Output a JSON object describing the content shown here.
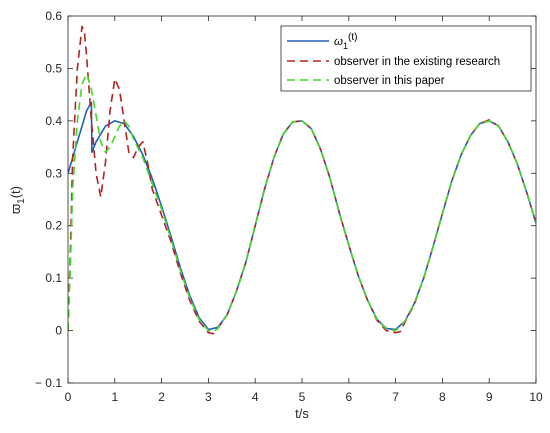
{
  "chart_data": {
    "type": "line",
    "xlabel": "t/s",
    "ylabel": "ϖ 1(t)",
    "ylabel_main": "ϖ",
    "ylabel_sub": "1",
    "ylabel_tail": "(t)",
    "xlim": [
      0,
      10
    ],
    "ylim": [
      -0.1,
      0.6
    ],
    "xticks": [
      0,
      1,
      2,
      3,
      4,
      5,
      6,
      7,
      8,
      9,
      10
    ],
    "xtick_labels": [
      "0",
      "1",
      "2",
      "3",
      "4",
      "5",
      "6",
      "7",
      "8",
      "9",
      "10"
    ],
    "yticks": [
      -0.1,
      0,
      0.1,
      0.2,
      0.3,
      0.4,
      0.5,
      0.6
    ],
    "ytick_labels": [
      "− 0.1",
      "0",
      "0.1",
      "0.2",
      "0.3",
      "0.4",
      "0.5",
      "0.6"
    ],
    "grid": false,
    "legend_position": "top-right",
    "series": [
      {
        "name": "ω 1(t)",
        "name_main": "ω",
        "name_sub": "1",
        "name_tail": "(t)",
        "color": "#1f5fb4",
        "style": "solid",
        "points": [
          [
            0,
            0.3
          ],
          [
            0.1,
            0.33
          ],
          [
            0.2,
            0.36
          ],
          [
            0.3,
            0.39
          ],
          [
            0.4,
            0.42
          ],
          [
            0.5,
            0.435
          ],
          [
            0.51,
            0.34
          ],
          [
            0.6,
            0.36
          ],
          [
            0.8,
            0.39
          ],
          [
            1.0,
            0.4
          ],
          [
            1.2,
            0.395
          ],
          [
            1.4,
            0.37
          ],
          [
            1.6,
            0.335
          ],
          [
            1.8,
            0.29
          ],
          [
            2.0,
            0.237
          ],
          [
            2.2,
            0.18
          ],
          [
            2.4,
            0.12
          ],
          [
            2.6,
            0.067
          ],
          [
            2.8,
            0.025
          ],
          [
            3.0,
            0.002
          ],
          [
            3.2,
            0.006
          ],
          [
            3.4,
            0.03
          ],
          [
            3.6,
            0.075
          ],
          [
            3.8,
            0.13
          ],
          [
            4.0,
            0.2
          ],
          [
            4.2,
            0.27
          ],
          [
            4.4,
            0.33
          ],
          [
            4.6,
            0.375
          ],
          [
            4.8,
            0.398
          ],
          [
            5.0,
            0.4
          ],
          [
            5.2,
            0.385
          ],
          [
            5.4,
            0.345
          ],
          [
            5.6,
            0.29
          ],
          [
            5.8,
            0.224
          ],
          [
            6.0,
            0.163
          ],
          [
            6.2,
            0.105
          ],
          [
            6.4,
            0.058
          ],
          [
            6.6,
            0.022
          ],
          [
            6.8,
            0.004
          ],
          [
            7.0,
            0.002
          ],
          [
            7.2,
            0.018
          ],
          [
            7.4,
            0.052
          ],
          [
            7.6,
            0.1
          ],
          [
            7.8,
            0.16
          ],
          [
            8.0,
            0.223
          ],
          [
            8.2,
            0.285
          ],
          [
            8.4,
            0.335
          ],
          [
            8.6,
            0.372
          ],
          [
            8.8,
            0.395
          ],
          [
            9.0,
            0.4
          ],
          [
            9.2,
            0.39
          ],
          [
            9.4,
            0.36
          ],
          [
            9.6,
            0.318
          ],
          [
            9.8,
            0.264
          ],
          [
            10.0,
            0.205
          ]
        ]
      },
      {
        "name": "observer in the existing research",
        "color": "#b22222",
        "style": "dashed",
        "points": [
          [
            0,
            0
          ],
          [
            0.05,
            0.15
          ],
          [
            0.1,
            0.33
          ],
          [
            0.2,
            0.5
          ],
          [
            0.3,
            0.58
          ],
          [
            0.35,
            0.57
          ],
          [
            0.4,
            0.52
          ],
          [
            0.5,
            0.4
          ],
          [
            0.6,
            0.3
          ],
          [
            0.7,
            0.255
          ],
          [
            0.8,
            0.32
          ],
          [
            0.9,
            0.42
          ],
          [
            1.0,
            0.48
          ],
          [
            1.1,
            0.46
          ],
          [
            1.2,
            0.4
          ],
          [
            1.3,
            0.34
          ],
          [
            1.4,
            0.33
          ],
          [
            1.5,
            0.35
          ],
          [
            1.6,
            0.36
          ],
          [
            1.7,
            0.32
          ],
          [
            1.8,
            0.27
          ],
          [
            2.0,
            0.22
          ],
          [
            2.2,
            0.17
          ],
          [
            2.4,
            0.11
          ],
          [
            2.6,
            0.058
          ],
          [
            2.8,
            0.018
          ],
          [
            3.0,
            -0.004
          ],
          [
            3.1,
            -0.006
          ],
          [
            3.2,
            0.004
          ],
          [
            3.4,
            0.03
          ],
          [
            3.6,
            0.075
          ],
          [
            3.8,
            0.13
          ],
          [
            4.0,
            0.2
          ],
          [
            4.2,
            0.27
          ],
          [
            4.4,
            0.33
          ],
          [
            4.6,
            0.375
          ],
          [
            4.8,
            0.398
          ],
          [
            5.0,
            0.4
          ],
          [
            5.2,
            0.385
          ],
          [
            5.4,
            0.345
          ],
          [
            5.6,
            0.29
          ],
          [
            5.8,
            0.224
          ],
          [
            6.0,
            0.163
          ],
          [
            6.2,
            0.105
          ],
          [
            6.4,
            0.058
          ],
          [
            6.6,
            0.02
          ],
          [
            6.8,
            0.0
          ],
          [
            7.0,
            -0.004
          ],
          [
            7.1,
            -0.002
          ],
          [
            7.2,
            0.016
          ],
          [
            7.4,
            0.05
          ],
          [
            7.6,
            0.1
          ],
          [
            7.8,
            0.16
          ],
          [
            8.0,
            0.223
          ],
          [
            8.2,
            0.285
          ],
          [
            8.4,
            0.335
          ],
          [
            8.6,
            0.372
          ],
          [
            8.8,
            0.395
          ],
          [
            9.0,
            0.402
          ],
          [
            9.2,
            0.39
          ],
          [
            9.4,
            0.36
          ],
          [
            9.6,
            0.318
          ],
          [
            9.8,
            0.264
          ],
          [
            10.0,
            0.205
          ]
        ]
      },
      {
        "name": "observer in this paper",
        "color": "#44d62c",
        "style": "dashed",
        "points": [
          [
            0,
            0
          ],
          [
            0.05,
            0.12
          ],
          [
            0.1,
            0.27
          ],
          [
            0.2,
            0.4
          ],
          [
            0.3,
            0.47
          ],
          [
            0.4,
            0.49
          ],
          [
            0.5,
            0.46
          ],
          [
            0.6,
            0.41
          ],
          [
            0.7,
            0.36
          ],
          [
            0.8,
            0.34
          ],
          [
            0.9,
            0.35
          ],
          [
            1.0,
            0.37
          ],
          [
            1.1,
            0.39
          ],
          [
            1.2,
            0.4
          ],
          [
            1.3,
            0.39
          ],
          [
            1.4,
            0.365
          ],
          [
            1.6,
            0.33
          ],
          [
            1.8,
            0.28
          ],
          [
            2.0,
            0.232
          ],
          [
            2.2,
            0.175
          ],
          [
            2.4,
            0.115
          ],
          [
            2.6,
            0.063
          ],
          [
            2.8,
            0.022
          ],
          [
            3.0,
            0.0
          ],
          [
            3.1,
            -0.003
          ],
          [
            3.2,
            0.004
          ],
          [
            3.4,
            0.03
          ],
          [
            3.6,
            0.075
          ],
          [
            3.8,
            0.13
          ],
          [
            4.0,
            0.2
          ],
          [
            4.2,
            0.27
          ],
          [
            4.4,
            0.33
          ],
          [
            4.6,
            0.375
          ],
          [
            4.8,
            0.398
          ],
          [
            5.0,
            0.4
          ],
          [
            5.2,
            0.385
          ],
          [
            5.4,
            0.345
          ],
          [
            5.6,
            0.29
          ],
          [
            5.8,
            0.224
          ],
          [
            6.0,
            0.163
          ],
          [
            6.2,
            0.105
          ],
          [
            6.4,
            0.058
          ],
          [
            6.6,
            0.022
          ],
          [
            6.8,
            0.003
          ],
          [
            7.0,
            0.0
          ],
          [
            7.2,
            0.018
          ],
          [
            7.4,
            0.052
          ],
          [
            7.6,
            0.1
          ],
          [
            7.8,
            0.16
          ],
          [
            8.0,
            0.223
          ],
          [
            8.2,
            0.285
          ],
          [
            8.4,
            0.335
          ],
          [
            8.6,
            0.372
          ],
          [
            8.8,
            0.395
          ],
          [
            9.0,
            0.4
          ],
          [
            9.2,
            0.39
          ],
          [
            9.4,
            0.36
          ],
          [
            9.6,
            0.318
          ],
          [
            9.8,
            0.264
          ],
          [
            10.0,
            0.205
          ]
        ]
      }
    ]
  }
}
